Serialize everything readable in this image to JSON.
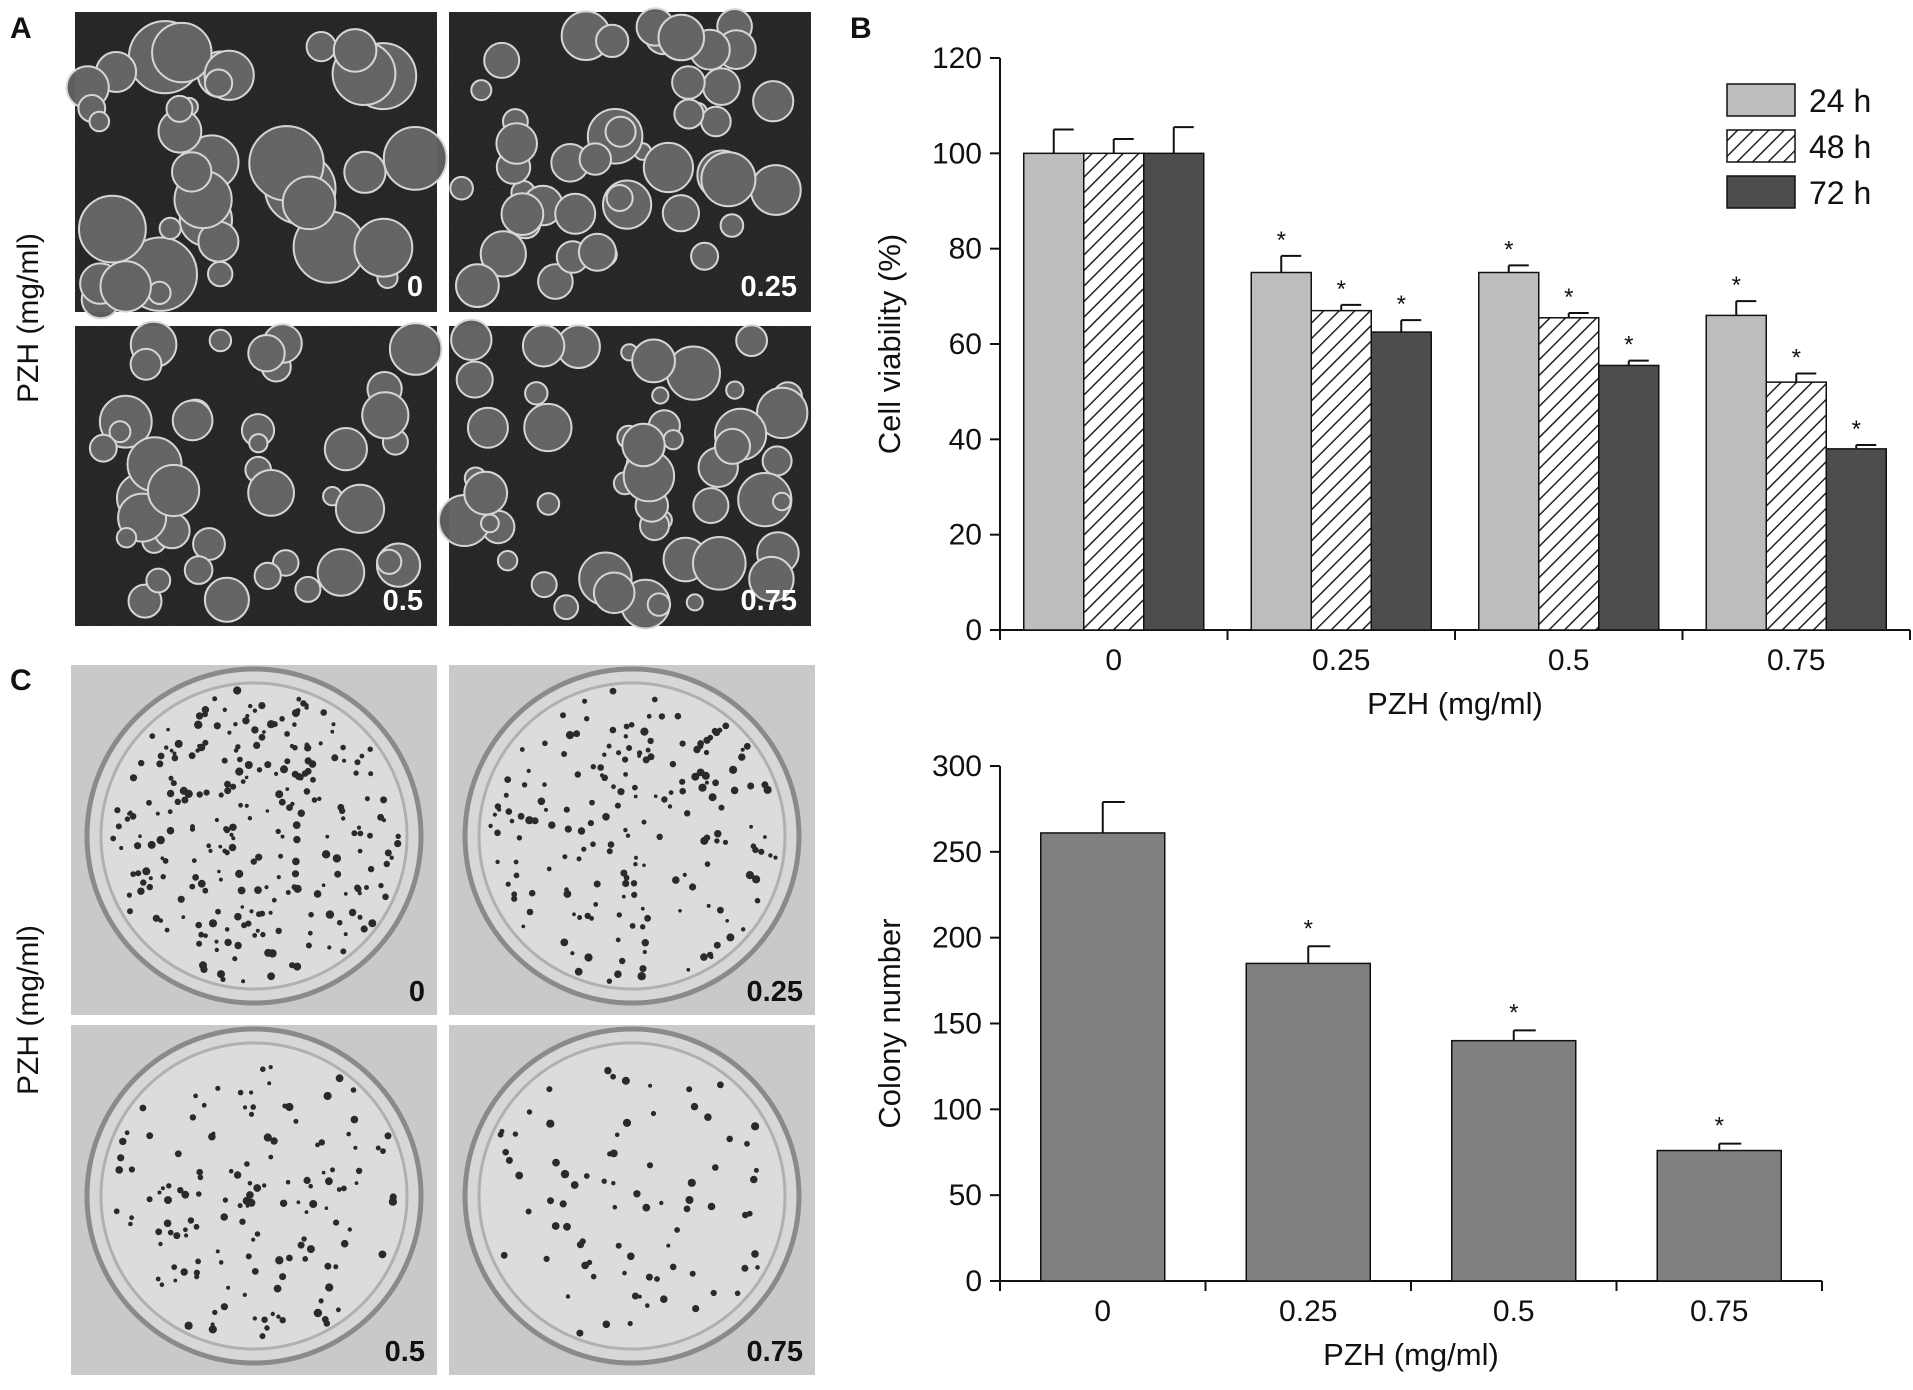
{
  "panels": {
    "a": {
      "letter": "A",
      "side_label": "PZH (mg/ml)",
      "labels": [
        "0",
        "0.25",
        "0.5",
        "0.75"
      ]
    },
    "b": {
      "letter": "B"
    },
    "c": {
      "letter": "C",
      "side_label": "PZH (mg/ml)",
      "labels": [
        "0",
        "0.25",
        "0.5",
        "0.75"
      ]
    }
  },
  "colors": {
    "series_24h": "#bdbdbd",
    "series_72h": "#4d4d4d",
    "colony_bar": "#808080",
    "micrograph_bg": "#1c1c1c",
    "dish_bg": "#c9c9c9"
  },
  "chart_data": [
    {
      "type": "bar",
      "title": "",
      "xlabel": "PZH (mg/ml)",
      "ylabel": "Cell viability (%)",
      "ylim": [
        0,
        120
      ],
      "yticks": [
        0,
        20,
        40,
        60,
        80,
        100,
        120
      ],
      "categories": [
        "0",
        "0.25",
        "0.5",
        "0.75"
      ],
      "legend_position": "top-right",
      "series": [
        {
          "name": "24 h",
          "pattern": "solid-light",
          "values": [
            100,
            75,
            75,
            66
          ],
          "errors": [
            5,
            3.5,
            1.5,
            3
          ],
          "significant": [
            false,
            true,
            true,
            true
          ]
        },
        {
          "name": "48 h",
          "pattern": "hatched",
          "values": [
            100,
            67,
            65.5,
            52
          ],
          "errors": [
            3,
            1.2,
            1,
            1.8
          ],
          "significant": [
            false,
            true,
            true,
            true
          ]
        },
        {
          "name": "72 h",
          "pattern": "solid-dark",
          "values": [
            100,
            62.5,
            55.5,
            38
          ],
          "errors": [
            5.5,
            2.5,
            1,
            0.8
          ],
          "significant": [
            false,
            true,
            true,
            true
          ]
        }
      ]
    },
    {
      "type": "bar",
      "title": "",
      "xlabel": "PZH (mg/ml)",
      "ylabel": "Colony number",
      "ylim": [
        0,
        300
      ],
      "yticks": [
        0,
        50,
        100,
        150,
        200,
        250,
        300
      ],
      "categories": [
        "0",
        "0.25",
        "0.5",
        "0.75"
      ],
      "values": [
        261,
        185,
        140,
        76
      ],
      "errors": [
        18,
        10,
        6,
        4
      ],
      "significant": [
        false,
        true,
        true,
        true
      ],
      "significance_marker": "*"
    }
  ]
}
